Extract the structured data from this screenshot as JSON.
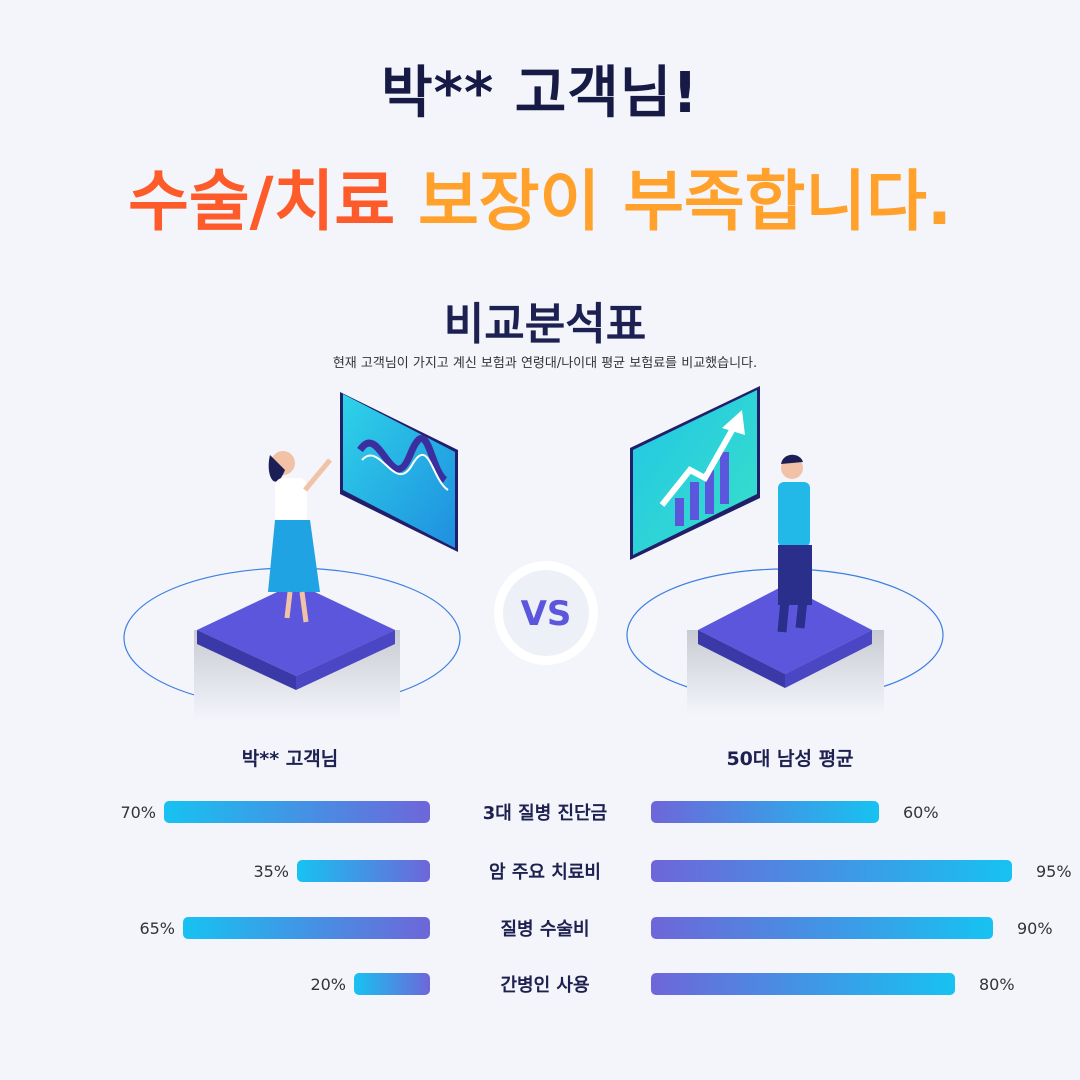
{
  "colors": {
    "red": "#fe5b2a",
    "orange": "#ffa12b",
    "navy": "#171a45",
    "bar_cyan": "#17c2f1",
    "bar_purple": "#6e66d9",
    "platform": "#5b56db"
  },
  "header": {
    "greeting": "박** 고객님!",
    "headline_red": "수술/치료",
    "headline_orange": "보장이 부족합니다."
  },
  "section": {
    "title": "비교분석표",
    "subtitle": "현재 고객님이 가지고 계신 보험과 연령대/나이대 평균 보험료를 비교했습니다."
  },
  "illustration": {
    "vs_label": "VS"
  },
  "comparison": {
    "left_title": "박** 고객님",
    "right_title": "50대 남성 평균",
    "rows": [
      {
        "label": "3대 질병 진단금",
        "left": "70%",
        "right": "60%",
        "left_value": 70,
        "right_value": 60
      },
      {
        "label": "암 주요 치료비",
        "left": "35%",
        "right": "95%",
        "left_value": 35,
        "right_value": 95
      },
      {
        "label": "질병 수술비",
        "left": "65%",
        "right": "90%",
        "left_value": 65,
        "right_value": 90
      },
      {
        "label": "간병인 사용",
        "left": "20%",
        "right": "80%",
        "left_value": 20,
        "right_value": 80
      }
    ]
  }
}
